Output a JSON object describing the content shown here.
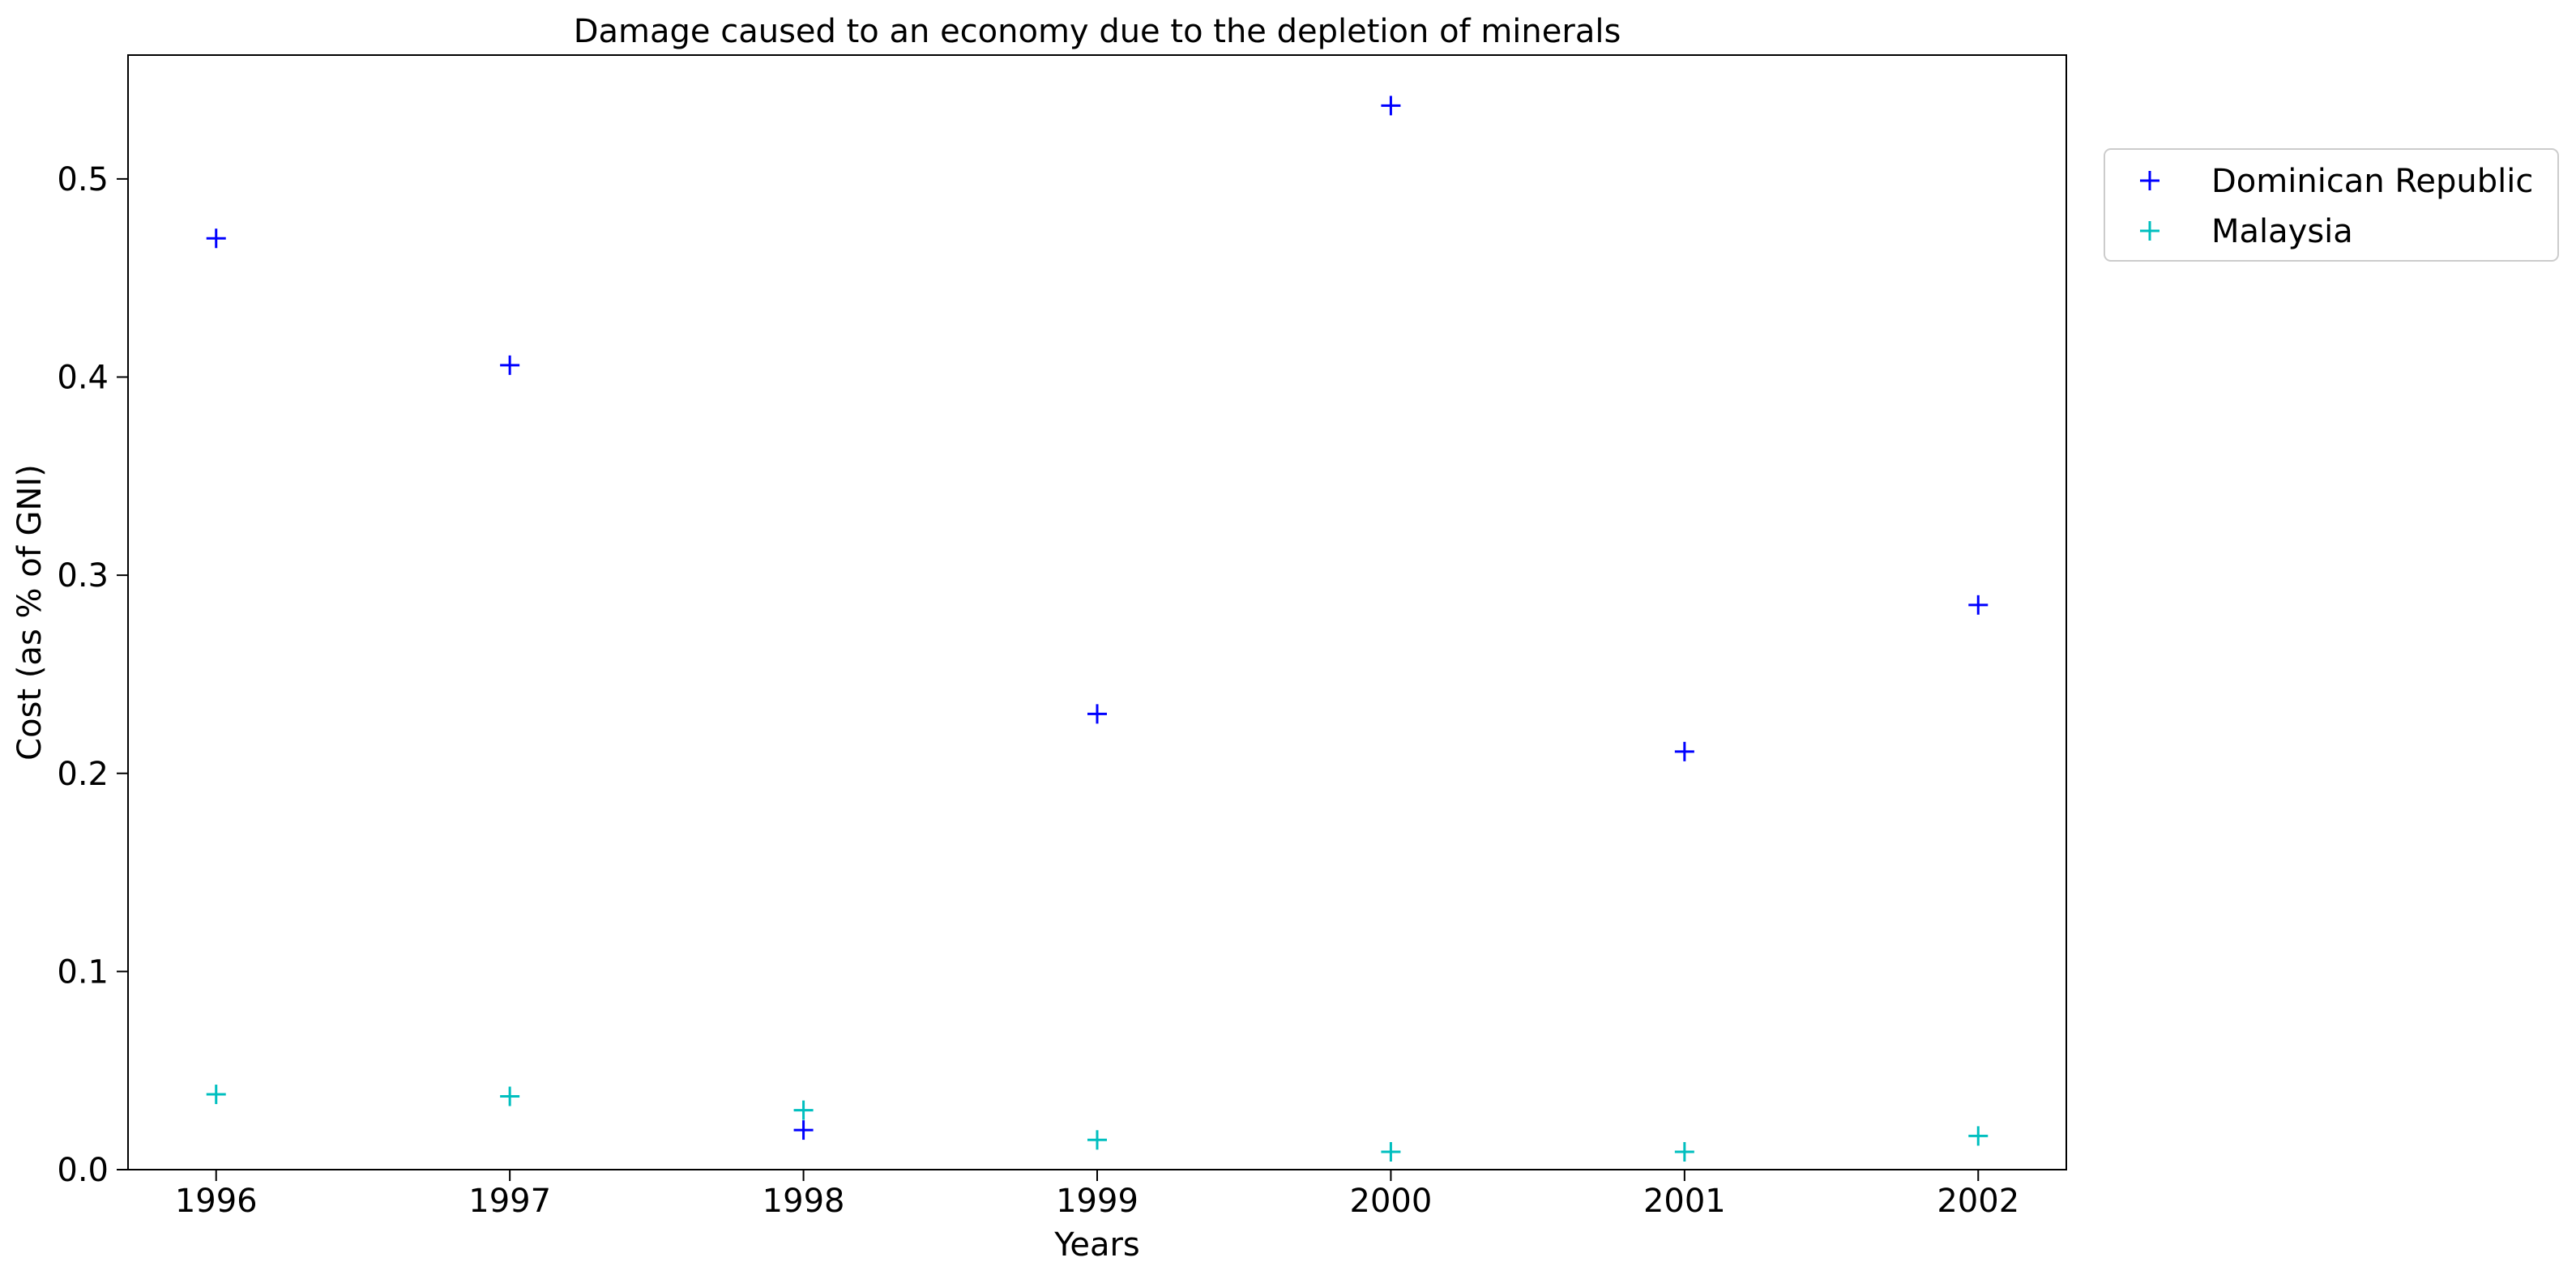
{
  "chart_data": {
    "type": "scatter",
    "title": "Damage caused to an economy due to the depletion of minerals",
    "xlabel": "Years",
    "ylabel": "Cost (as % of GNI)",
    "x": [
      "1996",
      "1997",
      "1998",
      "1999",
      "2000",
      "2001",
      "2002"
    ],
    "xlim": [
      1995.7,
      2002.3
    ],
    "ylim": [
      0,
      0.5625
    ],
    "yticks": [
      "0.0",
      "0.1",
      "0.2",
      "0.3",
      "0.4",
      "0.5"
    ],
    "series": [
      {
        "name": "Dominican Republic",
        "color": "#0000ff",
        "marker": "plus",
        "values": [
          0.47,
          0.406,
          0.02,
          0.23,
          0.537,
          0.211,
          0.285
        ]
      },
      {
        "name": "Malaysia",
        "color": "#00bfbf",
        "marker": "plus",
        "values": [
          0.038,
          0.037,
          0.03,
          0.015,
          0.009,
          0.009,
          0.017
        ]
      }
    ],
    "legend_position": "outside top-right",
    "grid": false
  }
}
